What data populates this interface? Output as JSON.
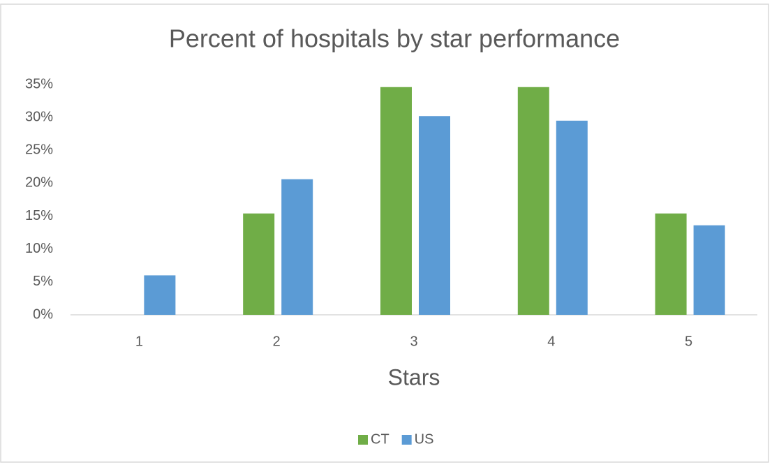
{
  "chart_data": {
    "type": "bar",
    "title": "Percent of hospitals by star performance",
    "x_label": "Stars",
    "categories": [
      "1",
      "2",
      "3",
      "4",
      "5"
    ],
    "series": [
      {
        "name": "CT",
        "color": "#70ad47",
        "values": [
          0,
          15.4,
          34.6,
          34.6,
          15.4
        ]
      },
      {
        "name": "US",
        "color": "#5b9bd5",
        "values": [
          6.0,
          20.6,
          30.2,
          29.5,
          13.6
        ]
      }
    ],
    "ylim": [
      0,
      35
    ],
    "yticks": [
      {
        "value": 0,
        "label": "0%"
      },
      {
        "value": 5,
        "label": "5%"
      },
      {
        "value": 10,
        "label": "10%"
      },
      {
        "value": 15,
        "label": "15%"
      },
      {
        "value": 20,
        "label": "20%"
      },
      {
        "value": 25,
        "label": "25%"
      },
      {
        "value": 30,
        "label": "30%"
      },
      {
        "value": 35,
        "label": "35%"
      }
    ],
    "grid": false,
    "legend": "bottom"
  }
}
